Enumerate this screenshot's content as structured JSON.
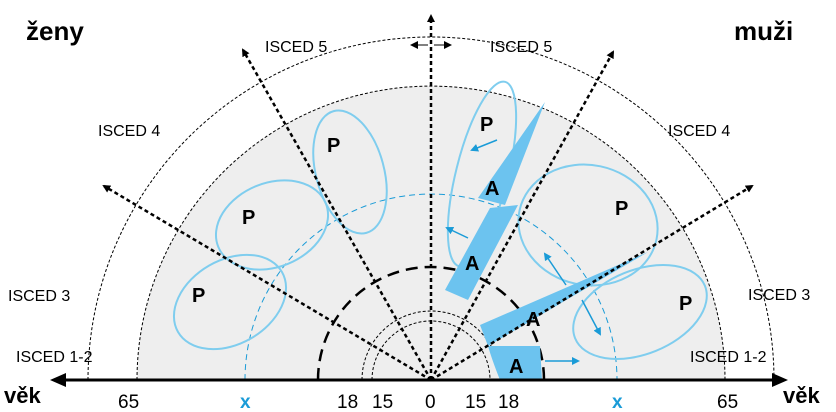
{
  "corner_labels": {
    "left": "ženy",
    "right": "muži"
  },
  "axis": {
    "label_left": "věk",
    "label_right": "věk",
    "ticks_left": [
      "65",
      "x",
      "18",
      "15",
      "0"
    ],
    "ticks_right": [
      "15",
      "18",
      "x",
      "65"
    ]
  },
  "isced_left": [
    "ISCED 5",
    "ISCED 4",
    "ISCED 3",
    "ISCED 1-2"
  ],
  "isced_right": [
    "ISCED 5",
    "ISCED 4",
    "ISCED 3",
    "ISCED 1-2"
  ],
  "region_labels": {
    "p_left": [
      "P",
      "P",
      "P"
    ],
    "p_right": [
      "P",
      "P",
      "P"
    ],
    "a_right": [
      "A",
      "A",
      "A",
      "A"
    ]
  },
  "colors": {
    "fill_region": "#eeeeee",
    "accent_blue": "#1a9bd7",
    "shape_blue": "#6cc3ef",
    "ellipse_stroke": "#7fcdee"
  }
}
